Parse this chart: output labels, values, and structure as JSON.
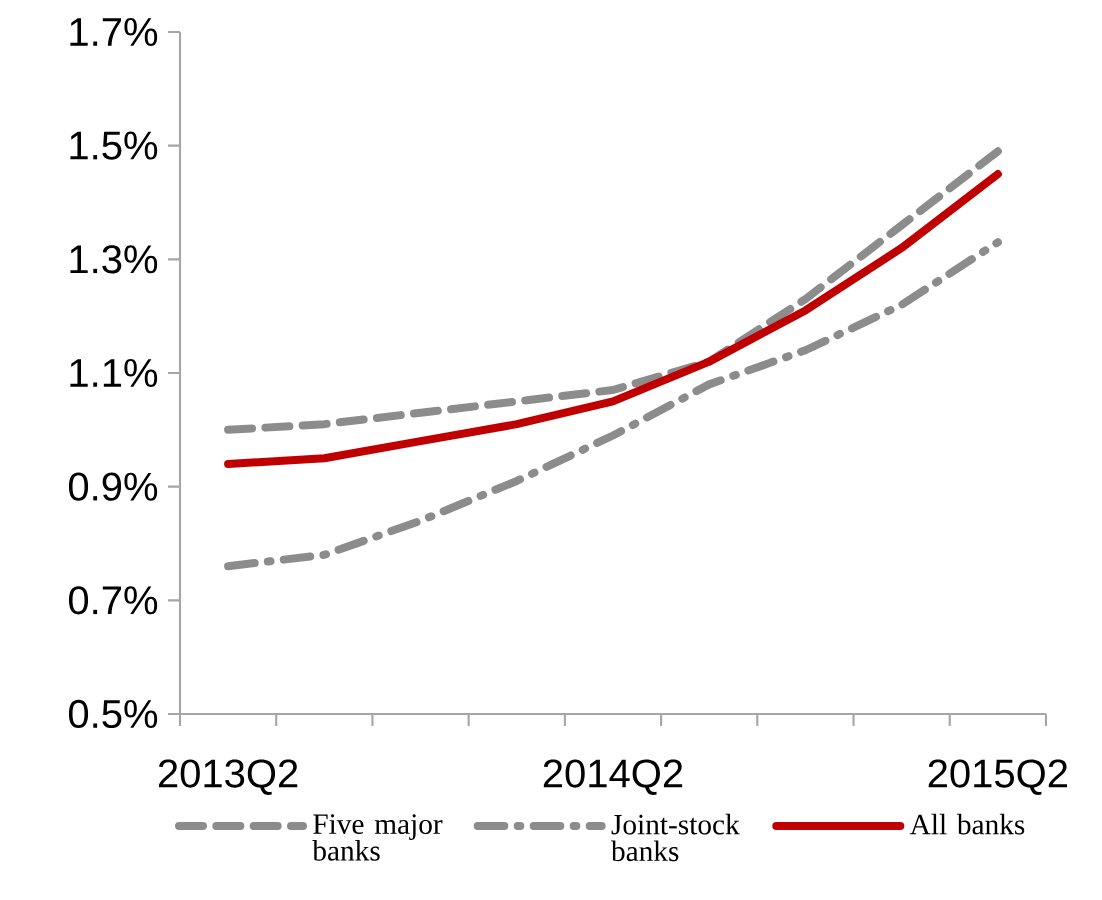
{
  "chart_data": {
    "type": "line",
    "categories": [
      "2013Q2",
      null,
      null,
      null,
      "2014Q2",
      null,
      null,
      null,
      "2015Q2"
    ],
    "series": [
      {
        "name": "Five major banks",
        "color": "#8c8c8c",
        "line_style": "dashed",
        "values": [
          1.0,
          1.01,
          1.03,
          1.05,
          1.07,
          1.12,
          1.23,
          1.36,
          1.49
        ]
      },
      {
        "name": "Joint-stock banks",
        "color": "#8c8c8c",
        "line_style": "dashdot",
        "values": [
          0.76,
          0.78,
          0.84,
          0.91,
          0.99,
          1.08,
          1.14,
          1.22,
          1.33
        ]
      },
      {
        "name": "All banks",
        "color": "#c00000",
        "line_style": "solid",
        "values": [
          0.94,
          0.95,
          0.98,
          1.01,
          1.05,
          1.12,
          1.21,
          1.32,
          1.45
        ]
      }
    ],
    "ylim": [
      0.5,
      1.7
    ],
    "yticks": [
      {
        "value": 0.5,
        "label": "0.5%"
      },
      {
        "value": 0.7,
        "label": "0.7%"
      },
      {
        "value": 0.9,
        "label": "0.9%"
      },
      {
        "value": 1.1,
        "label": "1.1%"
      },
      {
        "value": 1.3,
        "label": "1.3%"
      },
      {
        "value": 1.5,
        "label": "1.5%"
      },
      {
        "value": 1.7,
        "label": "1.7%"
      }
    ],
    "grid": false,
    "legend": "bottom",
    "marker": "none"
  }
}
